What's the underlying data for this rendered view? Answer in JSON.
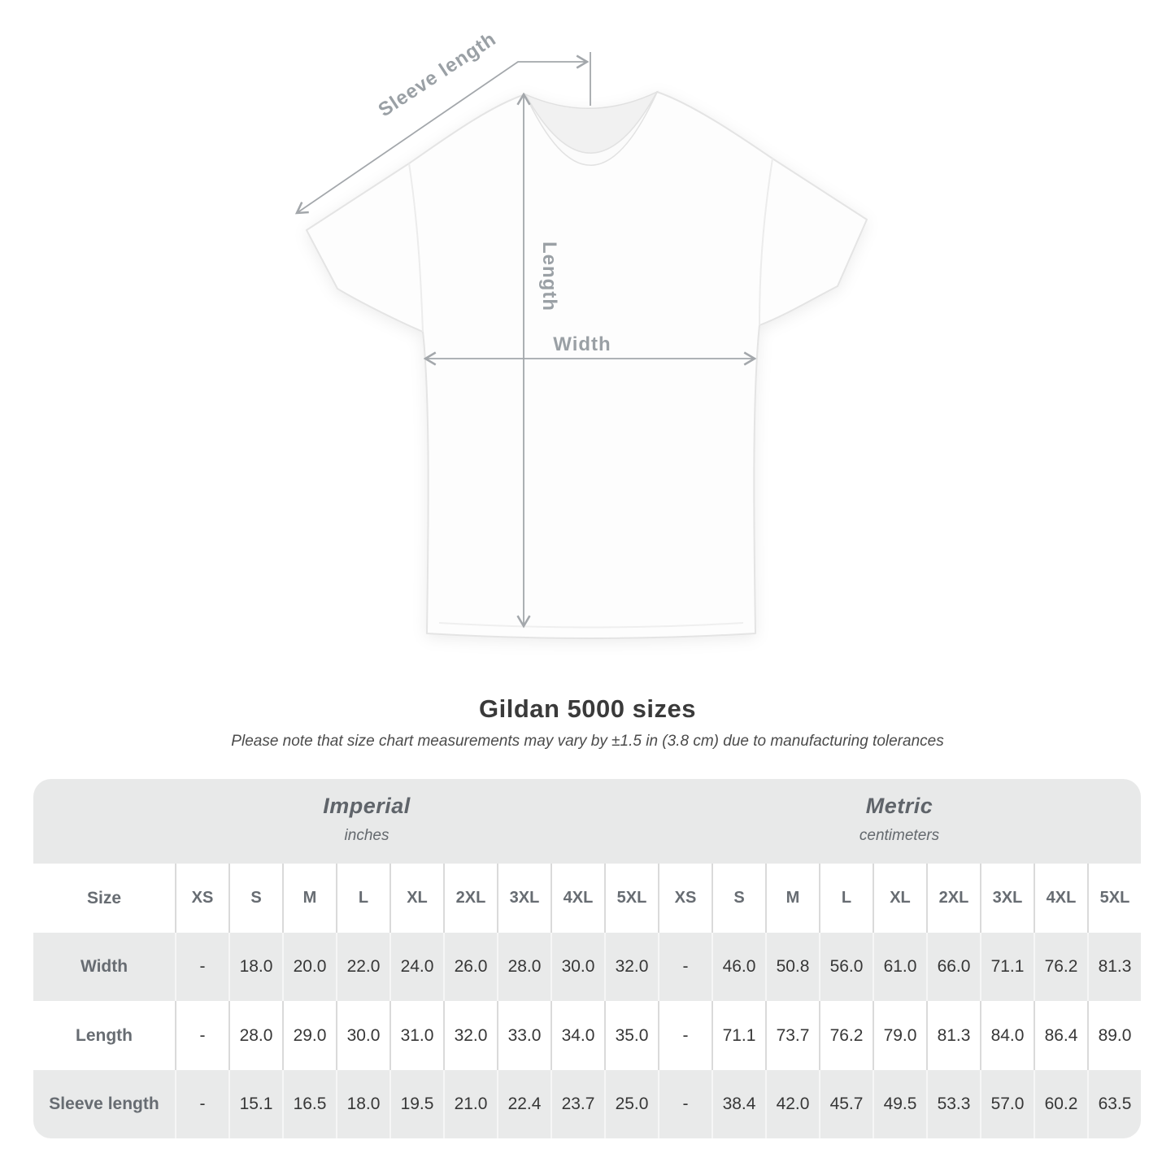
{
  "diagram": {
    "sleeve_label": "Sleeve length",
    "length_label": "Length",
    "width_label": "Width"
  },
  "header": {
    "title": "Gildan 5000 sizes",
    "note": "Please note that size chart measurements may vary by ±1.5 in (3.8 cm) due to manufacturing tolerances"
  },
  "colors": {
    "band_gray": "#e8e9e9",
    "row_gray": "#e9eaea",
    "diagram_gray": "#a3a7ab",
    "dim_label_gray": "#9aa0a5",
    "value_text": "#373737",
    "label_text": "#676c72",
    "title_text": "#3a3a3a"
  },
  "chart_data": {
    "type": "table",
    "title": "Gildan 5000 sizes",
    "note": "Please note that size chart measurements may vary by ±1.5 in (3.8 cm) due to manufacturing tolerances",
    "size_header_label": "Size",
    "unit_groups": [
      {
        "name": "Imperial",
        "unit": "inches"
      },
      {
        "name": "Metric",
        "unit": "centimeters"
      }
    ],
    "sizes": [
      "XS",
      "S",
      "M",
      "L",
      "XL",
      "2XL",
      "3XL",
      "4XL",
      "5XL"
    ],
    "rows": [
      {
        "label": "Width",
        "imperial": [
          "-",
          "18.0",
          "20.0",
          "22.0",
          "24.0",
          "26.0",
          "28.0",
          "30.0",
          "32.0"
        ],
        "metric": [
          "-",
          "46.0",
          "50.8",
          "56.0",
          "61.0",
          "66.0",
          "71.1",
          "76.2",
          "81.3"
        ]
      },
      {
        "label": "Length",
        "imperial": [
          "-",
          "28.0",
          "29.0",
          "30.0",
          "31.0",
          "32.0",
          "33.0",
          "34.0",
          "35.0"
        ],
        "metric": [
          "-",
          "71.1",
          "73.7",
          "76.2",
          "79.0",
          "81.3",
          "84.0",
          "86.4",
          "89.0"
        ]
      },
      {
        "label": "Sleeve length",
        "imperial": [
          "-",
          "15.1",
          "16.5",
          "18.0",
          "19.5",
          "21.0",
          "22.4",
          "23.7",
          "25.0"
        ],
        "metric": [
          "-",
          "38.4",
          "42.0",
          "45.7",
          "49.5",
          "53.3",
          "57.0",
          "60.2",
          "63.5"
        ]
      }
    ]
  }
}
